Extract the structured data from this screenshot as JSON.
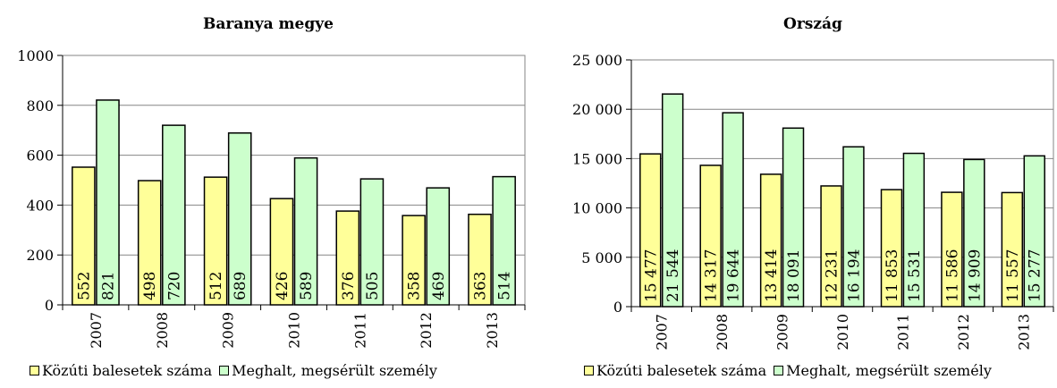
{
  "colors": {
    "series1": "#ffff99",
    "series2": "#ccffcc",
    "grid": "#868686"
  },
  "legend": {
    "series1": "Közúti balesetek száma",
    "series2": "Meghalt, megsérült személy"
  },
  "chart_data": [
    {
      "type": "bar",
      "title": "Baranya megye",
      "categories": [
        "2007",
        "2008",
        "2009",
        "2010",
        "2011",
        "2012",
        "2013"
      ],
      "series": [
        {
          "name": "Közúti balesetek száma",
          "values": [
            552,
            498,
            512,
            426,
            376,
            358,
            363
          ],
          "labels": [
            "552",
            "498",
            "512",
            "426",
            "376",
            "358",
            "363"
          ]
        },
        {
          "name": "Meghalt, megsérült személy",
          "values": [
            821,
            720,
            689,
            589,
            505,
            469,
            514
          ],
          "labels": [
            "821",
            "720",
            "689",
            "589",
            "505",
            "469",
            "514"
          ]
        }
      ],
      "ylim": [
        0,
        1000
      ],
      "yticks": [
        0,
        200,
        400,
        600,
        800,
        1000
      ],
      "ytick_labels": [
        "0",
        "200",
        "400",
        "600",
        "800",
        "1000"
      ],
      "grid": true,
      "legend_position": "bottom"
    },
    {
      "type": "bar",
      "title": "Ország",
      "categories": [
        "2007",
        "2008",
        "2009",
        "2010",
        "2011",
        "2012",
        "2013"
      ],
      "series": [
        {
          "name": "Közúti balesetek száma",
          "values": [
            15477,
            14317,
            13414,
            12231,
            11853,
            11586,
            11557
          ],
          "labels": [
            "15 477",
            "14 317",
            "13 414",
            "12 231",
            "11 853",
            "11 586",
            "11 557"
          ]
        },
        {
          "name": "Meghalt, megsérült személy",
          "values": [
            21544,
            19644,
            18091,
            16194,
            15531,
            14909,
            15277
          ],
          "labels": [
            "21 544",
            "19 644",
            "18 091",
            "16 194",
            "15 531",
            "14 909",
            "15 277"
          ]
        }
      ],
      "ylim": [
        0,
        25000
      ],
      "yticks": [
        0,
        5000,
        10000,
        15000,
        20000,
        25000
      ],
      "ytick_labels": [
        "0",
        "5 000",
        "10 000",
        "15 000",
        "20 000",
        "25 000"
      ],
      "grid": true,
      "legend_position": "bottom"
    }
  ]
}
